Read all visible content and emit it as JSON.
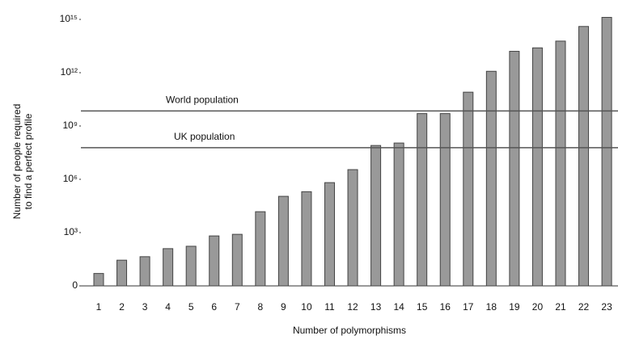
{
  "chart_data": {
    "type": "bar",
    "log_scale": true,
    "ylabel": [
      "Number of people required",
      "to find a perfect profile"
    ],
    "xlabel": "Number of polymorphisms",
    "categories": [
      "1",
      "2",
      "3",
      "4",
      "5",
      "6",
      "7",
      "8",
      "9",
      "10",
      "11",
      "12",
      "13",
      "14",
      "15",
      "16",
      "17",
      "18",
      "19",
      "20",
      "21",
      "22",
      "23"
    ],
    "values": [
      5,
      28,
      44,
      125,
      170,
      650,
      800,
      15000,
      110000,
      200000,
      650000,
      3500000,
      80000000,
      110000000,
      5000000000,
      5000000000,
      80000000000,
      1200000000000,
      16000000000000,
      25000000000000,
      60000000000000,
      400000000000000,
      1300000000000000
    ],
    "color": "#999999",
    "ylim": [
      1,
      2000000000000000
    ],
    "yticks": [
      {
        "value": 1,
        "label": "0"
      },
      {
        "value": 1000,
        "label": "10³"
      },
      {
        "value": 1000000,
        "label": "10⁶"
      },
      {
        "value": 1000000000,
        "label": "10⁹"
      },
      {
        "value": 1000000000000,
        "label": "10¹²"
      },
      {
        "value": 1000000000000000,
        "label": "10¹⁵"
      }
    ],
    "reference_lines": [
      {
        "label": "World population",
        "value": 7000000000
      },
      {
        "label": "UK population",
        "value": 60000000
      }
    ]
  }
}
